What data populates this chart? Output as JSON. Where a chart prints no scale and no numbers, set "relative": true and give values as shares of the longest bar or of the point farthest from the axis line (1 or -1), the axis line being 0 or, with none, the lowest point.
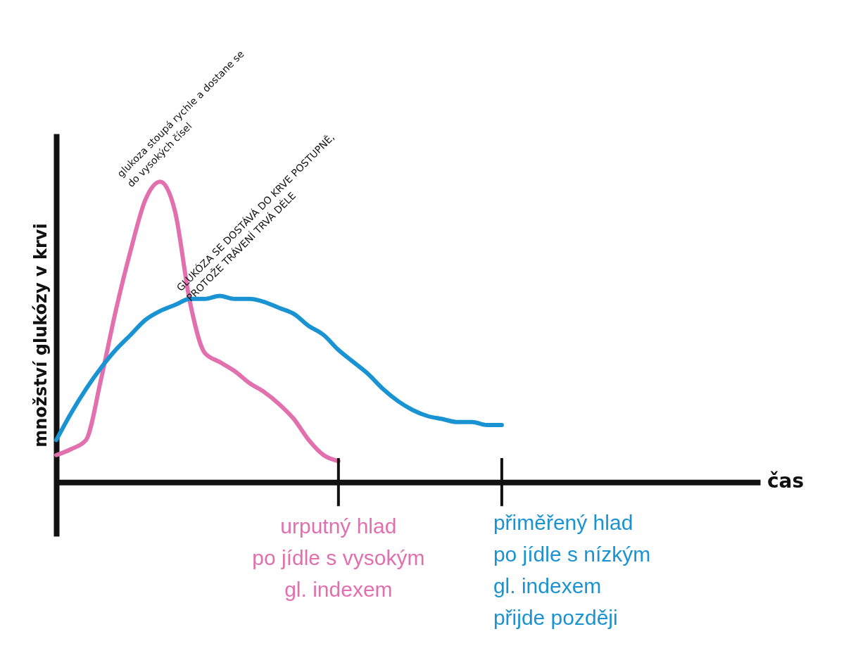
{
  "chart_data": {
    "type": "line",
    "relative": true,
    "ylabel": "množství glukózy v krvi",
    "categories": [
      null,
      null,
      null,
      null,
      null,
      null,
      null,
      null,
      null,
      null,
      null,
      null,
      null,
      null,
      null,
      null,
      null,
      null,
      null,
      null,
      null,
      null,
      null,
      null,
      null,
      null,
      null,
      null,
      null,
      null,
      null
    ],
    "series": [
      {
        "color": "#e26fae",
        "values": [
          0.09,
          0.11,
          0.14,
          0.34,
          0.57,
          0.77,
          0.94,
          1.0,
          0.9,
          0.6,
          0.43,
          0.4,
          0.37,
          0.33,
          0.3,
          0.26,
          0.21,
          0.14,
          0.09,
          0.07,
          null,
          null,
          null,
          null,
          null,
          null,
          null,
          null,
          null,
          null,
          null
        ]
      },
      {
        "color": "#1a93d3",
        "values": [
          0.14,
          0.23,
          0.31,
          0.38,
          0.44,
          0.49,
          0.54,
          0.57,
          0.59,
          0.61,
          0.61,
          0.62,
          0.61,
          0.61,
          0.6,
          0.58,
          0.56,
          0.52,
          0.49,
          0.44,
          0.4,
          0.36,
          0.31,
          0.27,
          0.24,
          0.22,
          0.21,
          0.2,
          0.2,
          0.19,
          0.19
        ]
      }
    ],
    "annotations": [
      "glukoza stoupá rychle a dostane se\ndo vysokých čísel",
      "GLUKÓZA SE DOSTÁVÁ DO KRVE POSTUPNĚ,\nPROTOŽE TRÁVENÍ TRVÁ DÉLE",
      "urputný hlad\npo jídle s vysokým\ngl. indexem",
      "přiměřený hlad\npo jídle s nízkým\ngl. indexem\npřijde později",
      "čas"
    ]
  }
}
